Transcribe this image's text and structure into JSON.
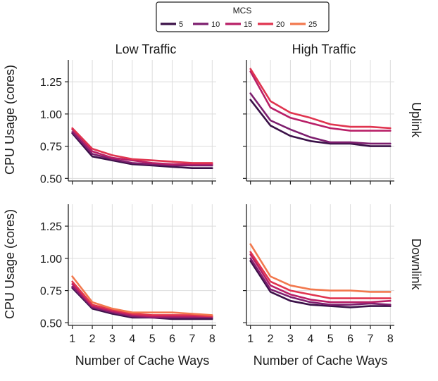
{
  "chart_data": {
    "type": "line",
    "legend": {
      "title": "MCS",
      "placement": "top-center",
      "entries": [
        "5",
        "10",
        "15",
        "20",
        "25"
      ],
      "colors": [
        "#3b1148",
        "#7d1e6e",
        "#b81f67",
        "#e0344f",
        "#f2784d"
      ]
    },
    "x": [
      1,
      2,
      3,
      4,
      5,
      6,
      7,
      8
    ],
    "xlabel": "Number of Cache Ways",
    "ylabel": "CPU Usage (cores)",
    "ylim": [
      0.48,
      1.42
    ],
    "yticks": [
      0.5,
      0.75,
      1.0,
      1.25
    ],
    "ytick_labels": [
      "0.50",
      "0.75",
      "1.00",
      "1.25"
    ],
    "xtick_labels": [
      "1",
      "2",
      "3",
      "4",
      "5",
      "6",
      "7",
      "8"
    ],
    "grid": true,
    "column_titles": [
      "Low Traffic",
      "High Traffic"
    ],
    "row_titles": [
      "Uplink",
      "Downlink"
    ],
    "panels": [
      {
        "traffic": "Low Traffic",
        "direction": "Uplink",
        "series": [
          {
            "name": "5",
            "values": [
              0.85,
              0.67,
              0.64,
              0.61,
              0.6,
              0.59,
              0.58,
              0.58
            ]
          },
          {
            "name": "10",
            "values": [
              0.86,
              0.69,
              0.65,
              0.62,
              0.61,
              0.6,
              0.6,
              0.6
            ]
          },
          {
            "name": "15",
            "values": [
              0.88,
              0.71,
              0.66,
              0.64,
              0.62,
              0.61,
              0.61,
              0.61
            ]
          },
          {
            "name": "20",
            "values": [
              0.89,
              0.73,
              0.68,
              0.65,
              0.64,
              0.63,
              0.62,
              0.62
            ]
          }
        ]
      },
      {
        "traffic": "High Traffic",
        "direction": "Uplink",
        "series": [
          {
            "name": "5",
            "values": [
              1.11,
              0.91,
              0.83,
              0.79,
              0.77,
              0.77,
              0.75,
              0.75
            ]
          },
          {
            "name": "10",
            "values": [
              1.16,
              0.95,
              0.88,
              0.82,
              0.78,
              0.78,
              0.77,
              0.77
            ]
          },
          {
            "name": "15",
            "values": [
              1.33,
              1.05,
              0.97,
              0.93,
              0.89,
              0.87,
              0.87,
              0.87
            ]
          },
          {
            "name": "20",
            "values": [
              1.35,
              1.1,
              1.01,
              0.97,
              0.92,
              0.9,
              0.9,
              0.89
            ]
          }
        ]
      },
      {
        "traffic": "Low Traffic",
        "direction": "Downlink",
        "series": [
          {
            "name": "5",
            "values": [
              0.77,
              0.61,
              0.57,
              0.54,
              0.54,
              0.53,
              0.53,
              0.53
            ]
          },
          {
            "name": "10",
            "values": [
              0.78,
              0.62,
              0.58,
              0.55,
              0.54,
              0.54,
              0.54,
              0.54
            ]
          },
          {
            "name": "15",
            "values": [
              0.8,
              0.63,
              0.59,
              0.56,
              0.55,
              0.55,
              0.55,
              0.55
            ]
          },
          {
            "name": "20",
            "values": [
              0.82,
              0.64,
              0.6,
              0.57,
              0.56,
              0.56,
              0.56,
              0.55
            ]
          },
          {
            "name": "25",
            "values": [
              0.86,
              0.66,
              0.61,
              0.58,
              0.58,
              0.58,
              0.57,
              0.56
            ]
          }
        ]
      },
      {
        "traffic": "High Traffic",
        "direction": "Downlink",
        "series": [
          {
            "name": "5",
            "values": [
              0.98,
              0.74,
              0.67,
              0.64,
              0.63,
              0.62,
              0.63,
              0.63
            ]
          },
          {
            "name": "10",
            "values": [
              1.0,
              0.76,
              0.7,
              0.66,
              0.64,
              0.64,
              0.65,
              0.64
            ]
          },
          {
            "name": "15",
            "values": [
              1.03,
              0.79,
              0.72,
              0.68,
              0.66,
              0.66,
              0.66,
              0.67
            ]
          },
          {
            "name": "20",
            "values": [
              1.05,
              0.82,
              0.75,
              0.72,
              0.69,
              0.69,
              0.69,
              0.69
            ]
          },
          {
            "name": "25",
            "values": [
              1.11,
              0.86,
              0.79,
              0.76,
              0.75,
              0.75,
              0.74,
              0.74
            ]
          }
        ]
      }
    ]
  }
}
